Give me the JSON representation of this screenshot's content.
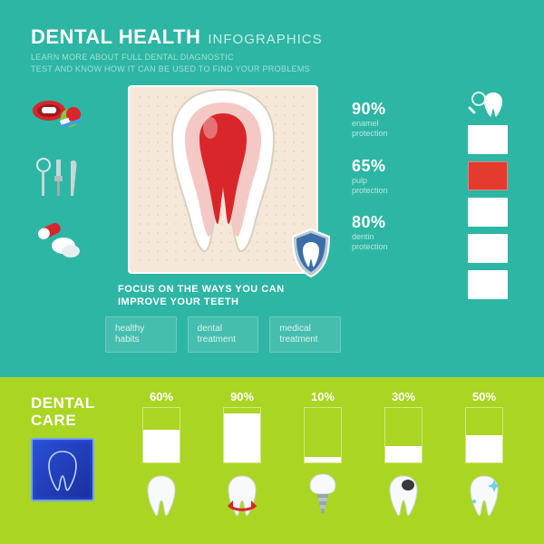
{
  "header": {
    "title_main": "DENTAL HEALTH",
    "title_sub": "INFOGRAPHICS",
    "subtitle_l1": "LEARN MORE ABOUT FULL DENTAL DIAGNOSTIC",
    "subtitle_l2": "TEST AND KNOW HOW IT CAN BE USED TO FIND YOUR PROBLEMS"
  },
  "colors": {
    "top_bg": "#2db6a4",
    "bottom_bg": "#aad522",
    "accent_red": "#e33b2e",
    "white": "#ffffff",
    "panel_bg": "#f5e8d8",
    "text_muted": "#b8e8e0"
  },
  "tooth_stats": [
    {
      "value": "90%",
      "label_l1": "enamel",
      "label_l2": "protection"
    },
    {
      "value": "65%",
      "label_l1": "pulp",
      "label_l2": "protection"
    },
    {
      "value": "80%",
      "label_l1": "dentin",
      "label_l2": "protection"
    }
  ],
  "right_squares": [
    {
      "bg": "#2db6a4",
      "has_magnifier": true
    },
    {
      "bg": "#ffffff"
    },
    {
      "bg": "#e33b2e"
    },
    {
      "bg": "#ffffff"
    },
    {
      "bg": "#ffffff"
    },
    {
      "bg": "#ffffff"
    }
  ],
  "focus": {
    "line1": "FOCUS ON THE WAYS YOU CAN",
    "line2": "IMPROVE YOUR TEETH",
    "chips": [
      {
        "l1": "healthy",
        "l2": "habits"
      },
      {
        "l1": "dental",
        "l2": "treatment"
      },
      {
        "l1": "medical",
        "l2": "treatment"
      }
    ]
  },
  "care": {
    "title_l1": "DENTAL",
    "title_l2": "CARE"
  },
  "bars": [
    {
      "pct": 60,
      "label": "60%",
      "icon": "tooth-plain"
    },
    {
      "pct": 90,
      "label": "90%",
      "icon": "tooth-rotate"
    },
    {
      "pct": 10,
      "label": "10%",
      "icon": "tooth-implant"
    },
    {
      "pct": 30,
      "label": "30%",
      "icon": "tooth-cavity"
    },
    {
      "pct": 50,
      "label": "50%",
      "icon": "tooth-shine"
    }
  ],
  "left_icons": [
    "mouth-brush",
    "dental-tools",
    "pills"
  ]
}
